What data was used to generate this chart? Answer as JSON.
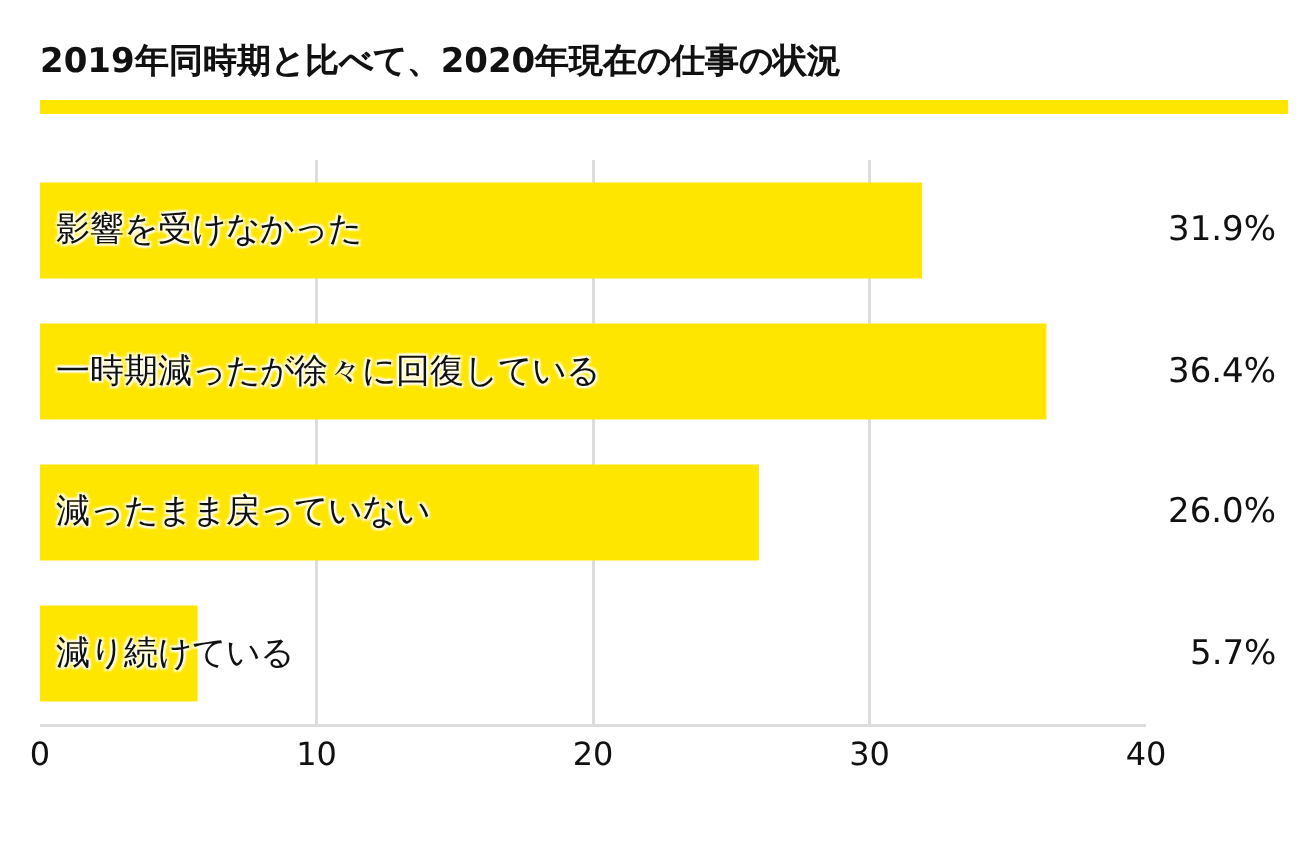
{
  "chart_data": {
    "type": "bar",
    "orientation": "horizontal",
    "title": "2019年同時期と比べて、2020年現在の仕事の状況",
    "categories": [
      "影響を受けなかった",
      "一時期減ったが徐々に回復している",
      "減ったまま戻っていない",
      "減り続けている"
    ],
    "values": [
      31.9,
      36.4,
      26.0,
      5.7
    ],
    "value_labels": [
      "31.9%",
      "36.4%",
      "26.0%",
      "5.7%"
    ],
    "color": "#ffe600",
    "xlim": [
      0,
      40
    ],
    "xticks": [
      0,
      10,
      20,
      30,
      40
    ],
    "grid": "x"
  }
}
